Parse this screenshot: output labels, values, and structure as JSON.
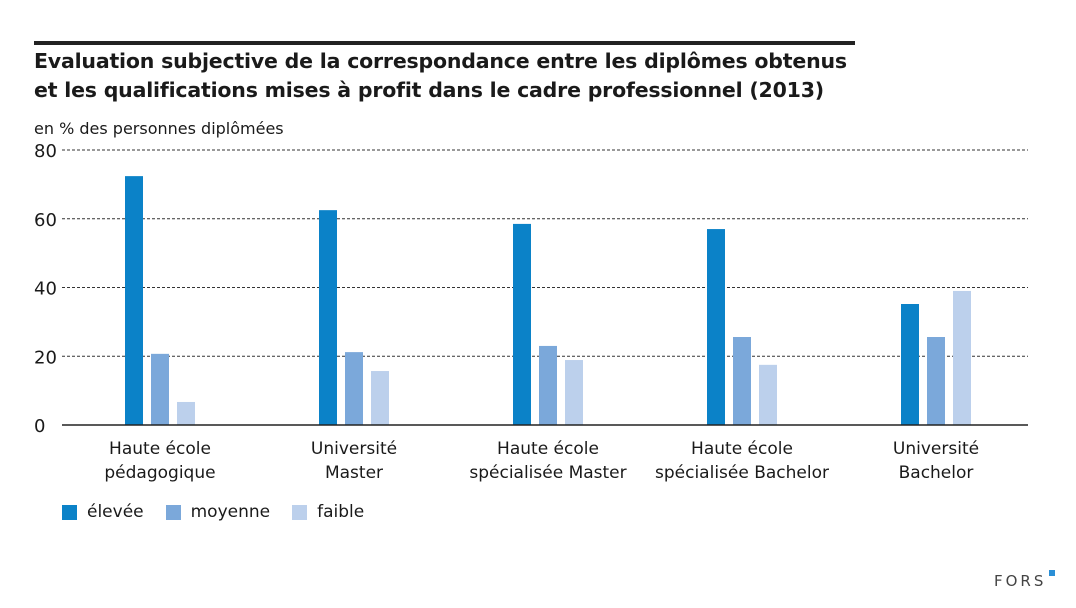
{
  "chart_data": {
    "type": "bar",
    "title": "Evaluation subjective de la correspondance entre les diplômes obtenus et les qualifications mises à profit dans le cadre professionnel (2013)",
    "title_lines": [
      "Evaluation subjective de la correspondance entre les diplômes obtenus",
      "et les qualifications mises à profit dans le cadre professionnel (2013)"
    ],
    "ylabel": "en % des personnes diplômées",
    "xlabel": "",
    "ylim": [
      0,
      80
    ],
    "yticks": [
      0,
      20,
      40,
      60,
      80
    ],
    "grid": true,
    "legend_position": "bottom-left",
    "categories": [
      [
        "Haute école",
        "pédagogique"
      ],
      [
        "Université",
        "Master"
      ],
      [
        "Haute école",
        "spécialisée Master"
      ],
      [
        "Haute école",
        "spécialisée Bachelor"
      ],
      [
        "Université",
        "Bachelor"
      ]
    ],
    "series": [
      {
        "name": "élevée",
        "color": "#0b82c8",
        "values": [
          72.4,
          62.5,
          58.5,
          57.0,
          35.2
        ]
      },
      {
        "name": "moyenne",
        "color": "#7ba8da",
        "values": [
          20.7,
          21.2,
          23.0,
          25.6,
          25.6
        ]
      },
      {
        "name": "faible",
        "color": "#bcd0ec",
        "values": [
          6.7,
          15.7,
          18.9,
          17.5,
          39.0
        ]
      }
    ]
  },
  "logo": "FORS"
}
